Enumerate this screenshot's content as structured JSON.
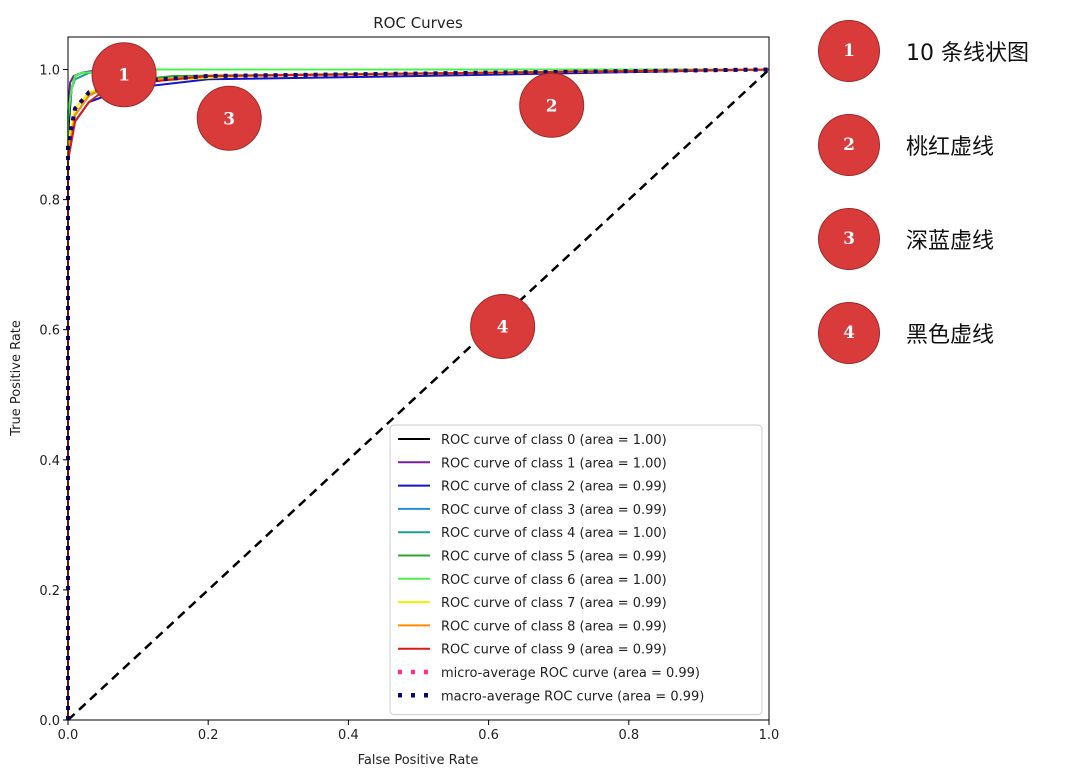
{
  "chart_data": {
    "type": "line",
    "title": "ROC Curves",
    "xlabel": "False Positive Rate",
    "ylabel": "True Positive Rate",
    "xlim": [
      0.0,
      1.0
    ],
    "ylim": [
      0.0,
      1.05
    ],
    "xticks": [
      "0.0",
      "0.2",
      "0.4",
      "0.6",
      "0.8",
      "1.0"
    ],
    "yticks": [
      "0.0",
      "0.2",
      "0.4",
      "0.6",
      "0.8",
      "1.0"
    ],
    "legend_position": "lower-right",
    "series": [
      {
        "name": "ROC curve of class 0 (area = 1.00)",
        "color": "#000000",
        "style": "solid",
        "x": [
          0,
          0,
          0.005,
          0.01,
          0.02,
          0.05,
          1.0
        ],
        "y": [
          0,
          0.9,
          0.97,
          0.99,
          0.995,
          1.0,
          1.0
        ]
      },
      {
        "name": "ROC curve of class 1 (area = 1.00)",
        "color": "#7b1fa2",
        "style": "solid",
        "x": [
          0,
          0,
          0.003,
          0.008,
          0.02,
          0.05,
          1.0
        ],
        "y": [
          0,
          0.93,
          0.98,
          0.99,
          0.995,
          1.0,
          1.0
        ]
      },
      {
        "name": "ROC curve of class 2 (area = 0.99)",
        "color": "#1414c8",
        "style": "solid",
        "x": [
          0,
          0,
          0.01,
          0.03,
          0.08,
          0.2,
          0.5,
          1.0
        ],
        "y": [
          0,
          0.86,
          0.92,
          0.95,
          0.97,
          0.985,
          0.99,
          1.0
        ]
      },
      {
        "name": "ROC curve of class 3 (area = 0.99)",
        "color": "#1f8fd6",
        "style": "solid",
        "x": [
          0,
          0,
          0.01,
          0.03,
          0.07,
          0.2,
          1.0
        ],
        "y": [
          0,
          0.87,
          0.93,
          0.96,
          0.98,
          0.99,
          1.0
        ]
      },
      {
        "name": "ROC curve of class 4 (area = 1.00)",
        "color": "#1aa08a",
        "style": "solid",
        "x": [
          0,
          0,
          0.005,
          0.01,
          0.03,
          0.1,
          1.0
        ],
        "y": [
          0,
          0.92,
          0.97,
          0.985,
          0.995,
          1.0,
          1.0
        ]
      },
      {
        "name": "ROC curve of class 5 (area = 0.99)",
        "color": "#2ca82c",
        "style": "solid",
        "x": [
          0,
          0,
          0.01,
          0.03,
          0.06,
          0.15,
          1.0
        ],
        "y": [
          0,
          0.88,
          0.93,
          0.96,
          0.98,
          0.99,
          1.0
        ]
      },
      {
        "name": "ROC curve of class 6 (area = 1.00)",
        "color": "#4cf04c",
        "style": "solid",
        "x": [
          0,
          0,
          0.005,
          0.01,
          0.02,
          0.1,
          1.0
        ],
        "y": [
          0,
          0.93,
          0.97,
          0.99,
          0.995,
          1.0,
          1.0
        ]
      },
      {
        "name": "ROC curve of class 7 (area = 0.99)",
        "color": "#f0f000",
        "style": "solid",
        "x": [
          0,
          0,
          0.01,
          0.03,
          0.08,
          0.25,
          1.0
        ],
        "y": [
          0,
          0.88,
          0.94,
          0.965,
          0.98,
          0.99,
          1.0
        ]
      },
      {
        "name": "ROC curve of class 8 (area = 0.99)",
        "color": "#ff8c00",
        "style": "solid",
        "x": [
          0,
          0,
          0.01,
          0.03,
          0.07,
          0.2,
          1.0
        ],
        "y": [
          0,
          0.87,
          0.93,
          0.96,
          0.98,
          0.99,
          1.0
        ]
      },
      {
        "name": "ROC curve of class 9 (area = 0.99)",
        "color": "#d81b1b",
        "style": "solid",
        "x": [
          0,
          0,
          0.01,
          0.03,
          0.06,
          0.2,
          1.0
        ],
        "y": [
          0,
          0.86,
          0.92,
          0.95,
          0.975,
          0.99,
          1.0
        ]
      },
      {
        "name": "micro-average ROC curve (area = 0.99)",
        "color": "#ff2d95",
        "style": "dotted",
        "x": [
          0,
          0,
          0.01,
          0.03,
          0.07,
          0.2,
          1.0
        ],
        "y": [
          0,
          0.88,
          0.94,
          0.965,
          0.98,
          0.99,
          1.0
        ]
      },
      {
        "name": "macro-average ROC curve (area = 0.99)",
        "color": "#0a0a6e",
        "style": "dotted",
        "x": [
          0,
          0,
          0.01,
          0.03,
          0.07,
          0.2,
          1.0
        ],
        "y": [
          0,
          0.88,
          0.94,
          0.965,
          0.98,
          0.99,
          1.0
        ]
      }
    ],
    "reference_line": {
      "x": [
        0,
        1
      ],
      "y": [
        0,
        1
      ],
      "color": "#000000",
      "style": "dashed"
    }
  },
  "markers": [
    {
      "num": "1",
      "x": 0.08,
      "y": 0.992
    },
    {
      "num": "2",
      "x": 0.69,
      "y": 0.945
    },
    {
      "num": "3",
      "x": 0.23,
      "y": 0.925
    },
    {
      "num": "4",
      "x": 0.62,
      "y": 0.605
    }
  ],
  "side_legend": [
    {
      "num": "1",
      "text": "10 条线状图"
    },
    {
      "num": "2",
      "text": "桃红虚线"
    },
    {
      "num": "3",
      "text": "深蓝虚线"
    },
    {
      "num": "4",
      "text": "黑色虚线"
    }
  ],
  "colors": {
    "marker_fill": "#d93a3a",
    "marker_stroke": "#a02828"
  }
}
